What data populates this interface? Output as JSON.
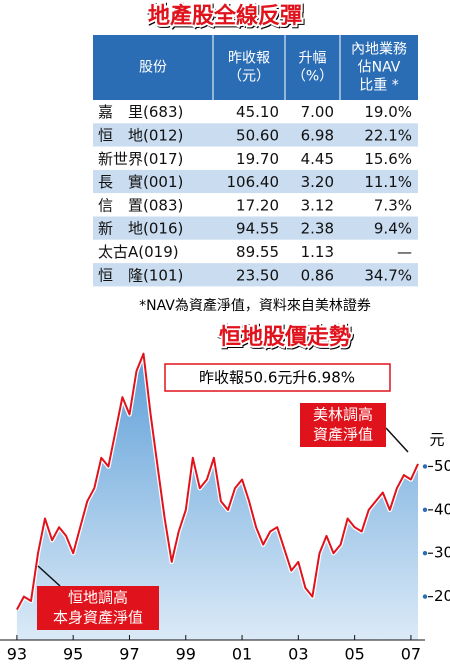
{
  "title": "地產股全線反彈",
  "table": {
    "headers": [
      [
        "股份"
      ],
      [
        "昨收報",
        "（元）"
      ],
      [
        "升幅",
        "（%）"
      ],
      [
        "內地業務",
        "佔NAV",
        "比重 *"
      ]
    ],
    "rows": [
      [
        "嘉　里(683)",
        "45.10",
        "7.00",
        "19.0%"
      ],
      [
        "恒　地(012)",
        "50.60",
        "6.98",
        "22.1%"
      ],
      [
        "新世界(017)",
        "19.70",
        "4.45",
        "15.6%"
      ],
      [
        "長　實(001)",
        "106.40",
        "3.20",
        "11.1%"
      ],
      [
        "信　置(083)",
        "17.20",
        "3.12",
        "7.3%"
      ],
      [
        "新　地(016)",
        "94.55",
        "2.38",
        "9.4%"
      ],
      [
        "太古A(019)",
        "89.55",
        "1.13",
        "—"
      ],
      [
        "恒　隆(101)",
        "23.50",
        "0.86",
        "34.7%"
      ]
    ]
  },
  "footnote": "*NAV為資產淨值，資料來自美林證券",
  "chart_data": {
    "type": "line",
    "title": "恒地股價走勢",
    "headline": "昨收報50.6元升6.98%",
    "y_unit": "元",
    "annotations": [
      [
        "美林調高",
        "資產淨值"
      ],
      [
        "恒地調高",
        "本身資產淨值"
      ]
    ],
    "color": "#e0121b",
    "area_color": "#7fb3e0",
    "x": [
      1993.0,
      1993.25,
      1993.5,
      1993.75,
      1994.0,
      1994.25,
      1994.5,
      1994.75,
      1995.0,
      1995.25,
      1995.5,
      1995.75,
      1996.0,
      1996.25,
      1996.5,
      1996.75,
      1997.0,
      1997.25,
      1997.5,
      1997.75,
      1998.0,
      1998.25,
      1998.5,
      1998.75,
      1999.0,
      1999.25,
      1999.5,
      1999.75,
      2000.0,
      2000.25,
      2000.5,
      2000.75,
      2001.0,
      2001.25,
      2001.5,
      2001.75,
      2002.0,
      2002.25,
      2002.5,
      2002.75,
      2003.0,
      2003.25,
      2003.5,
      2003.75,
      2004.0,
      2004.25,
      2004.5,
      2004.75,
      2005.0,
      2005.25,
      2005.5,
      2005.75,
      2006.0,
      2006.25,
      2006.5,
      2006.75,
      2007.0,
      2007.25
    ],
    "values": [
      17,
      20,
      19,
      30,
      38,
      33,
      36,
      34,
      30,
      36,
      42,
      45,
      52,
      50,
      58,
      66,
      62,
      72,
      76,
      62,
      50,
      38,
      28,
      35,
      40,
      52,
      45,
      47,
      52,
      42,
      40,
      45,
      47,
      42,
      36,
      32,
      35,
      36,
      31,
      26,
      28,
      22,
      20,
      30,
      34,
      30,
      32,
      38,
      36,
      35,
      40,
      42,
      44,
      40,
      45,
      48,
      47,
      50.6
    ],
    "xlim": [
      1992.4,
      2007.5
    ],
    "ylim": [
      10,
      78
    ],
    "xticks": [
      {
        "value": 1993,
        "label": "93"
      },
      {
        "value": 1995,
        "label": "95"
      },
      {
        "value": 1997,
        "label": "97"
      },
      {
        "value": 1999,
        "label": "99"
      },
      {
        "value": 2001,
        "label": "01"
      },
      {
        "value": 2003,
        "label": "03"
      },
      {
        "value": 2005,
        "label": "05"
      },
      {
        "value": 2007,
        "label": "07"
      }
    ],
    "yticks": [
      20,
      30,
      40,
      50
    ]
  }
}
